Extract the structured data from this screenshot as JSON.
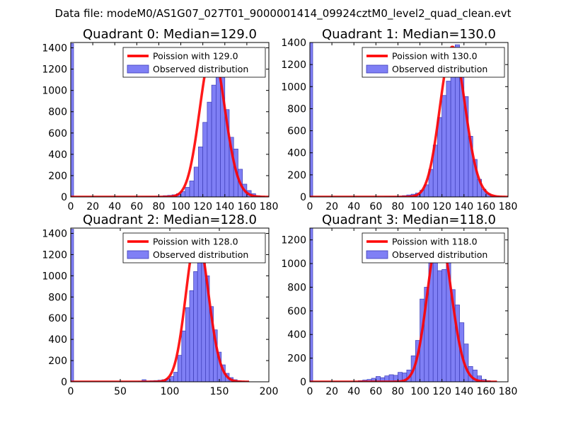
{
  "suptitle": "Data file: modeM0/AS1G07_027T01_9000001414_09924cztM0_level2_quad_clean.evt",
  "colors": {
    "bar_fill": "#7f7ff5",
    "bar_edge": "#3d3db8",
    "poisson_line": "#ff0000",
    "axes": "#000000"
  },
  "chart_data": [
    {
      "type": "bar",
      "title": "Quadrant 0: Median=129.0",
      "xlim": [
        0,
        180
      ],
      "ylim": [
        0,
        1450
      ],
      "xticks": [
        0,
        20,
        40,
        60,
        80,
        100,
        120,
        140,
        160,
        180
      ],
      "yticks": [
        0,
        200,
        400,
        600,
        800,
        1000,
        1200,
        1400
      ],
      "legend": [
        "Poission with 129.0",
        "Observed distribution"
      ],
      "legend_loc": "upper right",
      "spike_at_zero": 1440,
      "bin_width": 4,
      "bins": [
        [
          64,
          2
        ],
        [
          68,
          3
        ],
        [
          72,
          4
        ],
        [
          76,
          6
        ],
        [
          80,
          8
        ],
        [
          84,
          12
        ],
        [
          88,
          15
        ],
        [
          92,
          20
        ],
        [
          96,
          30
        ],
        [
          100,
          50
        ],
        [
          104,
          90
        ],
        [
          108,
          150
        ],
        [
          112,
          280
        ],
        [
          116,
          470
        ],
        [
          120,
          700
        ],
        [
          124,
          890
        ],
        [
          128,
          1050
        ],
        [
          132,
          1200
        ],
        [
          136,
          1130
        ],
        [
          140,
          820
        ],
        [
          144,
          560
        ],
        [
          148,
          450
        ],
        [
          152,
          260
        ],
        [
          156,
          120
        ],
        [
          160,
          60
        ],
        [
          164,
          30
        ],
        [
          168,
          12
        ],
        [
          172,
          5
        ]
      ],
      "poisson_mean": 129.0,
      "poisson_peak": 1370,
      "curve_range": [
        0,
        180
      ]
    },
    {
      "type": "bar",
      "title": "Quadrant 1: Median=130.0",
      "xlim": [
        0,
        180
      ],
      "ylim": [
        0,
        1400
      ],
      "xticks": [
        0,
        20,
        40,
        60,
        80,
        100,
        120,
        140,
        160,
        180
      ],
      "yticks": [
        0,
        200,
        400,
        600,
        800,
        1000,
        1200,
        1400
      ],
      "legend": [
        "Poission with 130.0",
        "Observed distribution"
      ],
      "legend_loc": "upper right",
      "spike_at_zero": 1400,
      "bin_width": 4,
      "bins": [
        [
          68,
          3
        ],
        [
          72,
          4
        ],
        [
          76,
          6
        ],
        [
          80,
          8
        ],
        [
          84,
          12
        ],
        [
          88,
          18
        ],
        [
          92,
          25
        ],
        [
          96,
          35
        ],
        [
          100,
          60
        ],
        [
          104,
          110
        ],
        [
          108,
          250
        ],
        [
          112,
          470
        ],
        [
          116,
          720
        ],
        [
          120,
          920
        ],
        [
          124,
          1050
        ],
        [
          128,
          1200
        ],
        [
          132,
          1380
        ],
        [
          136,
          1130
        ],
        [
          140,
          910
        ],
        [
          144,
          550
        ],
        [
          148,
          340
        ],
        [
          152,
          160
        ],
        [
          156,
          70
        ],
        [
          160,
          30
        ],
        [
          164,
          12
        ],
        [
          168,
          5
        ]
      ],
      "poisson_mean": 130.0,
      "poisson_peak": 1360,
      "curve_range": [
        0,
        180
      ]
    },
    {
      "type": "bar",
      "title": "Quadrant 2: Median=128.0",
      "xlim": [
        0,
        200
      ],
      "ylim": [
        0,
        1450
      ],
      "xticks": [
        0,
        50,
        100,
        150,
        200
      ],
      "yticks": [
        0,
        200,
        400,
        600,
        800,
        1000,
        1200,
        1400
      ],
      "legend": [
        "Poission with 128.0",
        "Observed distribution"
      ],
      "legend_loc": "upper right",
      "spike_at_zero": 1440,
      "bin_width": 4,
      "bins": [
        [
          68,
          3
        ],
        [
          72,
          20
        ],
        [
          76,
          8
        ],
        [
          80,
          10
        ],
        [
          84,
          12
        ],
        [
          88,
          15
        ],
        [
          92,
          20
        ],
        [
          96,
          30
        ],
        [
          100,
          50
        ],
        [
          104,
          90
        ],
        [
          108,
          250
        ],
        [
          112,
          480
        ],
        [
          116,
          700
        ],
        [
          120,
          860
        ],
        [
          124,
          1040
        ],
        [
          128,
          1250
        ],
        [
          132,
          1300
        ],
        [
          136,
          1000
        ],
        [
          140,
          710
        ],
        [
          144,
          490
        ],
        [
          148,
          280
        ],
        [
          152,
          160
        ],
        [
          156,
          80
        ],
        [
          160,
          40
        ],
        [
          164,
          20
        ],
        [
          168,
          10
        ],
        [
          172,
          5
        ],
        [
          176,
          3
        ]
      ],
      "poisson_mean": 128.0,
      "poisson_peak": 1380,
      "curve_range": [
        0,
        180
      ]
    },
    {
      "type": "bar",
      "title": "Quadrant 3: Median=118.0",
      "xlim": [
        0,
        180
      ],
      "ylim": [
        0,
        1300
      ],
      "xticks": [
        0,
        20,
        40,
        60,
        80,
        100,
        120,
        140,
        160,
        180
      ],
      "yticks": [
        0,
        200,
        400,
        600,
        800,
        1000,
        1200
      ],
      "legend": [
        "Poission with 118.0",
        "Observed distribution"
      ],
      "legend_loc": "upper right",
      "spike_at_zero": 1300,
      "bin_width": 4,
      "bins": [
        [
          44,
          10
        ],
        [
          48,
          15
        ],
        [
          52,
          20
        ],
        [
          56,
          30
        ],
        [
          60,
          45
        ],
        [
          64,
          35
        ],
        [
          68,
          50
        ],
        [
          72,
          60
        ],
        [
          76,
          55
        ],
        [
          80,
          80
        ],
        [
          84,
          75
        ],
        [
          88,
          100
        ],
        [
          92,
          220
        ],
        [
          96,
          350
        ],
        [
          100,
          700
        ],
        [
          104,
          800
        ],
        [
          108,
          1050
        ],
        [
          112,
          1200
        ],
        [
          116,
          940
        ],
        [
          120,
          950
        ],
        [
          124,
          1120
        ],
        [
          128,
          780
        ],
        [
          132,
          650
        ],
        [
          136,
          500
        ],
        [
          140,
          320
        ],
        [
          144,
          130
        ],
        [
          148,
          100
        ],
        [
          152,
          50
        ],
        [
          156,
          20
        ],
        [
          160,
          10
        ]
      ],
      "poisson_mean": 118.0,
      "poisson_peak": 1250,
      "curve_range": [
        0,
        170
      ]
    }
  ]
}
